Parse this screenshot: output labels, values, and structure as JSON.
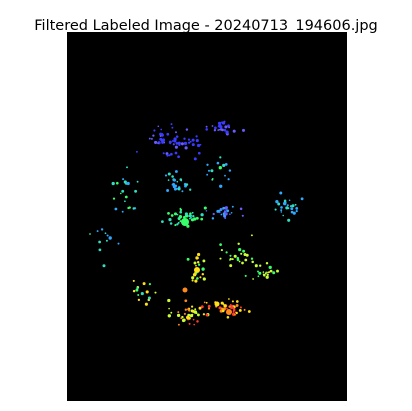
{
  "figure": {
    "title": "Filtered Labeled Image - 20240713_194606.jpg"
  },
  "image": {
    "background_color": "#000000",
    "palette": [
      "#3b3bff",
      "#6a5cff",
      "#2fa8ff",
      "#2fe0c0",
      "#37ff6a",
      "#c8ff37",
      "#ffe11a",
      "#ff8a1a",
      "#ff3b2f"
    ]
  }
}
